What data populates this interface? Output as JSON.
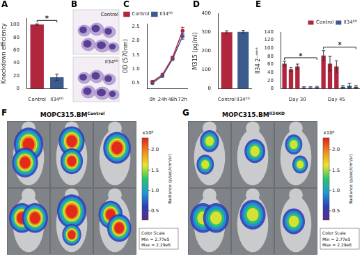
{
  "chart_data": [
    {
      "panel": "A",
      "type": "bar",
      "y_label": "Knockdown efficiency",
      "categories": [
        "Control",
        "Il34ᴷᴰ"
      ],
      "values": [
        100,
        18
      ],
      "errors": [
        1,
        5
      ],
      "colors": [
        "#b0263d",
        "#3b5b8c"
      ],
      "ylim": [
        0,
        110
      ],
      "yticks": [
        0,
        20,
        40,
        60,
        80,
        100
      ],
      "grid": false,
      "significance": [
        {
          "from": 0,
          "to": 1,
          "text": "*"
        }
      ]
    },
    {
      "panel": "C",
      "type": "line",
      "y_label": "OD (570nm)",
      "categories": [
        "0h",
        "24h",
        "48h",
        "72h"
      ],
      "series": [
        {
          "name": "Control",
          "color": "#b0263d",
          "marker": "circle",
          "values": [
            0.55,
            0.8,
            1.4,
            2.35
          ],
          "errors": [
            0.03,
            0.03,
            0.05,
            0.12
          ]
        },
        {
          "name": "Il34ᴷᴰ",
          "color": "#3b5b8c",
          "marker": "circle",
          "values": [
            0.5,
            0.75,
            1.35,
            2.15
          ],
          "errors": [
            0.03,
            0.03,
            0.05,
            0.1
          ]
        }
      ],
      "ylim": [
        0.3,
        2.6
      ],
      "yticks": [
        0.5,
        {
          "value": 1,
          "label": "1.0"
        },
        {
          "value": 1.5,
          "label": "1.5"
        },
        {
          "value": 2,
          "label": "2.0"
        },
        {
          "value": 2.5,
          "label": "2.5"
        }
      ],
      "grid": false,
      "legend": "upper left"
    },
    {
      "panel": "D",
      "type": "bar",
      "y_label": "M315 (pg/ml)",
      "categories": [
        "Control",
        "Il34ᴷᴰ"
      ],
      "values": [
        300,
        302
      ],
      "errors": [
        8,
        8
      ],
      "colors": [
        "#b0263d",
        "#3b5b8c"
      ],
      "ylim": [
        0,
        400
      ],
      "yticks": [
        0,
        100,
        200,
        300,
        400
      ],
      "grid": false
    },
    {
      "panel": "E",
      "type": "bar",
      "y_label": "Il34 2⁻ᵈᵈᶜᵗ",
      "categories": [
        null,
        null,
        "Day 30",
        null,
        null,
        null,
        null,
        null,
        "Day 45",
        null,
        null,
        null
      ],
      "series": [
        {
          "name": "Control",
          "color": "#b0263d",
          "values": [
            62,
            48,
            55,
            null,
            null,
            null,
            82,
            62,
            55,
            null,
            null,
            null
          ],
          "errors": [
            6,
            5,
            6,
            null,
            null,
            null,
            12,
            18,
            14,
            null,
            null,
            null
          ]
        },
        {
          "name": "Il34ᴷᴰ",
          "color": "#3b5b8c",
          "values": [
            null,
            null,
            null,
            3,
            3,
            4,
            null,
            null,
            null,
            5,
            8,
            5
          ],
          "errors": [
            null,
            null,
            null,
            2,
            2,
            2,
            null,
            null,
            null,
            3,
            6,
            3
          ]
        }
      ],
      "ylim": [
        0,
        140
      ],
      "yticks": [
        0,
        20,
        40,
        60,
        80,
        100,
        120,
        140
      ],
      "grid": false,
      "legend": "upper right",
      "significance": [
        {
          "from": 0,
          "to": 5,
          "text": "*"
        },
        {
          "from": 6,
          "to": 11,
          "text": "*"
        }
      ]
    }
  ],
  "images": {
    "B": {
      "panel": "B",
      "labels": [
        "Control",
        "Il34ᴷᴰ"
      ]
    },
    "F": {
      "panel": "F",
      "title": {
        "base": "MOPC315.BM",
        "sup": "Control"
      },
      "colorbar": {
        "range": [
          0.277,
          2.29
        ],
        "ticks": [
          0.5,
          {
            "value": 1,
            "label": "1.0"
          },
          {
            "value": 1.5,
            "label": "1.5"
          },
          {
            "value": 2,
            "label": "2.0"
          }
        ],
        "unit": "x10⁶",
        "title": "Radiance (p/sec/cm²/sr)"
      },
      "scale_box": [
        "Color Scale",
        "Min = 2.77e5",
        "Max = 2.29e6"
      ]
    },
    "G": {
      "panel": "G",
      "title": {
        "base": "MOPC315.BM",
        "sup": "Il34KD"
      },
      "colorbar": {
        "range": [
          0.277,
          2.29
        ],
        "ticks": [
          0.5,
          {
            "value": 1,
            "label": "1.0"
          },
          {
            "value": 1.5,
            "label": "1.5"
          },
          {
            "value": 2,
            "label": "2.0"
          }
        ],
        "unit": "x10⁶",
        "title": "Radiance (p/sec/cm²/sr)"
      },
      "scale_box": [
        "Color Scale",
        "Min = 2.77e5",
        "Max = 2.29e6"
      ]
    }
  }
}
